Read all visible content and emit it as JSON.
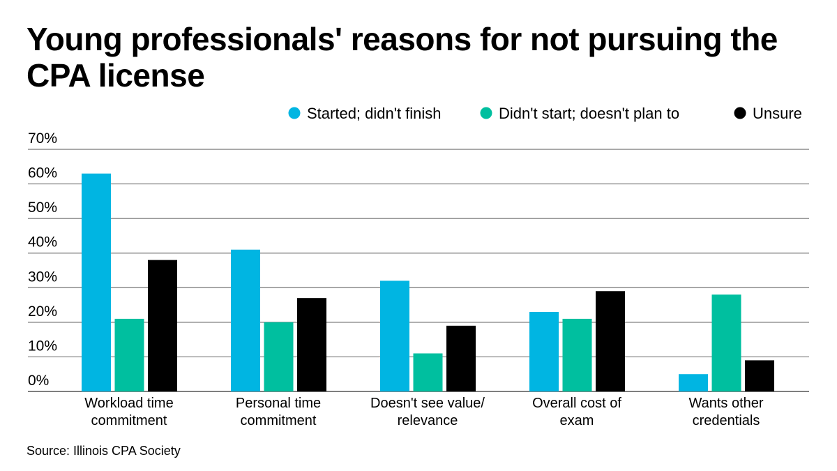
{
  "chart_data": {
    "type": "bar",
    "title": "Young professionals' reasons for not pursuing the CPA license",
    "categories": [
      [
        "Workload time",
        "commitment"
      ],
      [
        "Personal time",
        "commitment"
      ],
      [
        "Doesn't see value/",
        "relevance"
      ],
      [
        "Overall cost of",
        "exam"
      ],
      [
        "Wants other",
        "credentials"
      ]
    ],
    "series": [
      {
        "name": "Started; didn't finish",
        "color": "#00b5e2",
        "values": [
          63,
          41,
          32,
          23,
          5
        ]
      },
      {
        "name": "Didn't start; doesn't plan to",
        "color": "#00bf9f",
        "values": [
          21,
          20,
          11,
          21,
          28
        ]
      },
      {
        "name": "Unsure",
        "color": "#000000",
        "values": [
          38,
          27,
          19,
          29,
          9
        ]
      }
    ],
    "ylim": [
      0,
      70
    ],
    "yticks": [
      "0%",
      "10%",
      "20%",
      "30%",
      "40%",
      "50%",
      "60%",
      "70%"
    ],
    "grid": true,
    "legend": "top-right",
    "source": "Source: Illinois CPA Society"
  }
}
